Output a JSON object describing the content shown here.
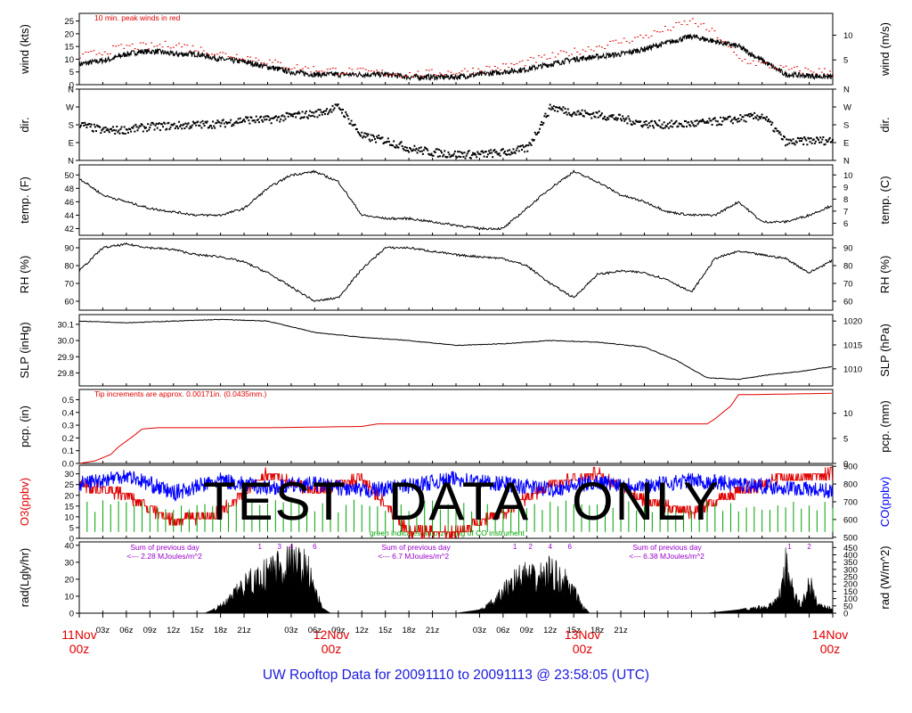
{
  "title": "UW Rooftop Data for 20091110  to  20091113 @ 23:58:05  (UTC)",
  "watermark": [
    "TEST",
    "DATA",
    "ONLY"
  ],
  "time_axis": {
    "hour_ticks": [
      "03z",
      "06z",
      "09z",
      "12z",
      "15z",
      "18z",
      "21z",
      "03z",
      "06z",
      "09z",
      "12z",
      "15z",
      "18z",
      "21z",
      "03z",
      "06z",
      "09z",
      "12z",
      "15z",
      "18z",
      "21z"
    ],
    "day_labels": [
      {
        "day": "11Nov",
        "hour": "00z"
      },
      {
        "day": "12Nov",
        "hour": "00z"
      },
      {
        "day": "13Nov",
        "hour": "00z"
      },
      {
        "day": "14Nov",
        "hour": "00z"
      }
    ],
    "day_label_color": "#e00000"
  },
  "colors": {
    "frame": "#000000",
    "red": "#e00000",
    "blue": "#0000ff",
    "green": "#00a000",
    "purple": "#9900cc"
  },
  "chart_data": [
    {
      "type": "line",
      "ylabel_left": "wind (kts)",
      "ylabel_right": "wind (m/s)",
      "ylim": [
        0,
        28
      ],
      "yticks": [
        "0",
        "5",
        "10",
        "15",
        "20",
        "25"
      ],
      "right_ticks": [
        "5",
        "10"
      ],
      "right_values": [
        5,
        10
      ],
      "right_factor": 1.944,
      "annotation": "10 min. peak winds in red",
      "series": [
        {
          "name": "",
          "color": "#000000",
          "x": [
            0,
            2,
            4,
            6,
            8,
            10,
            12,
            15,
            18,
            21,
            24,
            27,
            30,
            33,
            36,
            39,
            42,
            45,
            48,
            51,
            54,
            57,
            60,
            63,
            66,
            69,
            72,
            78,
            84,
            90,
            96
          ],
          "y": [
            8,
            9,
            10,
            12,
            13,
            13,
            12,
            12,
            10,
            9,
            7,
            5,
            4,
            4,
            4,
            4,
            3,
            3,
            3,
            4,
            5,
            6,
            8,
            10,
            11,
            12,
            14,
            19,
            15,
            4,
            3
          ]
        },
        {
          "name": "10 min. peak winds",
          "color": "#e00000",
          "x": [
            0,
            3,
            6,
            9,
            12,
            15,
            18,
            21,
            24,
            27,
            30,
            36,
            42,
            48,
            54,
            60,
            66,
            72,
            78,
            81,
            84,
            90,
            96
          ],
          "y": [
            11,
            13,
            15,
            15,
            16,
            14,
            12,
            11,
            9,
            7,
            6,
            5,
            4,
            5,
            7,
            11,
            15,
            19,
            25,
            20,
            10,
            6,
            5
          ]
        }
      ]
    },
    {
      "type": "scatter",
      "ylabel_left": "dir.",
      "ylabel_right": "dir.",
      "ylim": [
        0,
        360
      ],
      "yticks": [
        "N",
        "E",
        "S",
        "W",
        "N"
      ],
      "ytick_values": [
        0,
        90,
        180,
        270,
        360
      ],
      "right_ticks": [
        "N",
        "E",
        "S",
        "W",
        "N"
      ],
      "right_values": [
        0,
        90,
        180,
        270,
        360
      ],
      "right_factor": 1,
      "series": [
        {
          "name": "",
          "color": "#000000",
          "x": [
            0,
            3,
            6,
            9,
            12,
            15,
            18,
            21,
            24,
            27,
            30,
            33,
            36,
            39,
            42,
            45,
            48,
            51,
            54,
            57,
            60,
            63,
            66,
            69,
            72,
            75,
            78,
            81,
            84,
            87,
            90,
            93,
            96
          ],
          "y": [
            180,
            150,
            155,
            170,
            175,
            180,
            185,
            205,
            205,
            225,
            235,
            270,
            120,
            100,
            60,
            40,
            30,
            30,
            40,
            60,
            270,
            240,
            230,
            210,
            185,
            180,
            185,
            195,
            210,
            225,
            90,
            100,
            100
          ]
        }
      ]
    },
    {
      "type": "line",
      "ylabel_left": "temp. (F)",
      "ylabel_right": "temp. (C)",
      "ylim": [
        41,
        51.5
      ],
      "yticks": [
        "42",
        "44",
        "46",
        "48",
        "50"
      ],
      "ytick_values": [
        42,
        44,
        46,
        48,
        50
      ],
      "right_ticks": [
        "6",
        "7",
        "8",
        "9",
        "10"
      ],
      "right_values": [
        6,
        7,
        8,
        9,
        10
      ],
      "right_factor": "C",
      "series": [
        {
          "name": "",
          "color": "#000000",
          "x": [
            0,
            3,
            6,
            9,
            12,
            15,
            18,
            21,
            24,
            27,
            30,
            33,
            36,
            39,
            42,
            45,
            48,
            51,
            54,
            57,
            60,
            63,
            66,
            69,
            72,
            75,
            78,
            81,
            84,
            87,
            90,
            93,
            96
          ],
          "y": [
            49.5,
            47,
            46,
            45,
            44.5,
            44,
            44,
            45,
            48,
            50,
            50.5,
            49,
            44,
            43.5,
            43.5,
            43,
            42.5,
            42,
            42,
            45,
            48,
            50.5,
            49,
            47,
            46,
            44.5,
            44,
            44,
            46,
            43,
            43,
            44,
            45.5
          ]
        }
      ]
    },
    {
      "type": "line",
      "ylabel_left": "RH (%)",
      "ylabel_right": "RH (%)",
      "ylim": [
        55,
        95
      ],
      "yticks": [
        "60",
        "70",
        "80",
        "90"
      ],
      "ytick_values": [
        60,
        70,
        80,
        90
      ],
      "right_ticks": [
        "60",
        "70",
        "80",
        "90"
      ],
      "right_values": [
        60,
        70,
        80,
        90
      ],
      "right_factor": 1,
      "series": [
        {
          "name": "",
          "color": "#000000",
          "x": [
            0,
            3,
            6,
            9,
            12,
            15,
            18,
            21,
            24,
            27,
            30,
            33,
            36,
            39,
            42,
            45,
            48,
            51,
            54,
            57,
            60,
            63,
            66,
            69,
            72,
            75,
            78,
            81,
            84,
            87,
            90,
            93,
            96
          ],
          "y": [
            77,
            90,
            92,
            90,
            89,
            86,
            85,
            82,
            76,
            68,
            60,
            62,
            78,
            90,
            90,
            88,
            86,
            85,
            84,
            80,
            70,
            62,
            75,
            77,
            76,
            72,
            65,
            84,
            88,
            86,
            84,
            76,
            83
          ]
        }
      ]
    },
    {
      "type": "line",
      "ylabel_left": "SLP (inHg)",
      "ylabel_right": "SLP (hPa)",
      "ylim": [
        29.72,
        30.16
      ],
      "yticks": [
        "29.8",
        "29.9",
        "30.0",
        "30.1"
      ],
      "ytick_values": [
        29.8,
        29.9,
        30.0,
        30.1
      ],
      "right_ticks": [
        "1010",
        "1015",
        "1020"
      ],
      "right_values": [
        1010,
        1015,
        1020
      ],
      "right_factor": "hPa",
      "series": [
        {
          "name": "",
          "color": "#000000",
          "x": [
            0,
            6,
            12,
            18,
            24,
            30,
            36,
            42,
            48,
            54,
            60,
            66,
            72,
            76,
            80,
            84,
            88,
            92,
            96
          ],
          "y": [
            30.12,
            30.11,
            30.12,
            30.13,
            30.12,
            30.05,
            30.02,
            30.0,
            29.97,
            29.98,
            30.0,
            29.99,
            29.96,
            29.88,
            29.77,
            29.76,
            29.79,
            29.81,
            29.84
          ]
        }
      ]
    },
    {
      "type": "line",
      "ylabel_left": "pcp. (in)",
      "ylabel_right": "pcp. (mm)",
      "ylim": [
        0,
        0.58
      ],
      "yticks": [
        "0.0",
        "0.1",
        "0.2",
        "0.3",
        "0.4",
        "0.5"
      ],
      "ytick_values": [
        0,
        0.1,
        0.2,
        0.3,
        0.4,
        0.5
      ],
      "right_ticks": [
        "0",
        "5",
        "10"
      ],
      "right_values": [
        0,
        5,
        10
      ],
      "right_factor": 25.4,
      "annotation": "Tip increments are approx. 0.00171in. (0.0435mm.)",
      "series": [
        {
          "name": "",
          "color": "#e00000",
          "x": [
            0,
            2,
            4,
            5,
            7,
            8,
            10,
            16,
            24,
            36,
            38,
            48,
            60,
            72,
            80,
            81,
            83,
            84,
            86,
            96
          ],
          "y": [
            0,
            0.02,
            0.07,
            0.13,
            0.22,
            0.27,
            0.28,
            0.28,
            0.28,
            0.29,
            0.31,
            0.31,
            0.31,
            0.31,
            0.31,
            0.35,
            0.45,
            0.54,
            0.54,
            0.55
          ]
        }
      ]
    },
    {
      "type": "line",
      "ylabel_left": "O3(ppbv)",
      "ylabel_right": "CO(ppbv)",
      "ylim": [
        0,
        34
      ],
      "yticks": [
        "0",
        "5",
        "10",
        "15",
        "20",
        "25",
        "30"
      ],
      "ytick_values": [
        0,
        5,
        10,
        15,
        20,
        25,
        30
      ],
      "right_ticks": [
        "500",
        "600",
        "700",
        "800",
        "900"
      ],
      "right_values": [
        500,
        600,
        700,
        800,
        900
      ],
      "right_factor": "CO",
      "annotation": "green indicates auto-zeroing of CO instrument",
      "series": [
        {
          "name": "O3",
          "color": "#e00000",
          "x": [
            0,
            6,
            12,
            18,
            24,
            30,
            36,
            42,
            48,
            54,
            60,
            66,
            72,
            78,
            84,
            90,
            96
          ],
          "y": [
            25,
            20,
            8,
            12,
            30,
            22,
            28,
            3,
            3,
            12,
            25,
            30,
            18,
            12,
            22,
            28,
            30
          ]
        },
        {
          "name": "CO",
          "color": "#0000ff",
          "x": [
            0,
            6,
            12,
            18,
            24,
            30,
            36,
            42,
            48,
            54,
            60,
            66,
            72,
            78,
            84,
            90,
            96
          ],
          "y": [
            800,
            850,
            750,
            820,
            780,
            800,
            760,
            790,
            830,
            800,
            770,
            810,
            790,
            820,
            800,
            780,
            760
          ]
        }
      ]
    },
    {
      "type": "area",
      "ylabel_left": "rad(Lgly/hr)",
      "ylabel_right": "rad (W/m^2)",
      "ylim": [
        0,
        42
      ],
      "yticks": [
        "0",
        "10",
        "20",
        "30",
        "40"
      ],
      "ytick_values": [
        0,
        10,
        20,
        30,
        40
      ],
      "right_ticks": [
        "0",
        "50",
        "100",
        "150",
        "200",
        "250",
        "300",
        "350",
        "400",
        "450",
        "500"
      ],
      "right_values": [
        0,
        50,
        100,
        150,
        200,
        250,
        300,
        350,
        400,
        450,
        500
      ],
      "right_factor": 11.63,
      "annotations": [
        {
          "line1": "Sum of previous day",
          "line2": "<--- 2.28 MJoules/m^2",
          "x": 9
        },
        {
          "line1": "Sum of previous day",
          "line2": "<--- 6.7 MJoules/m^2",
          "x": 41
        },
        {
          "line1": "Sum of previous day",
          "line2": "<--- 6.38 MJoules/m^2",
          "x": 73
        }
      ],
      "event_marks": [
        {
          "label": "1",
          "x": 23
        },
        {
          "label": "3",
          "x": 25.5
        },
        {
          "label": "4",
          "x": 27
        },
        {
          "label": "6",
          "x": 30
        },
        {
          "label": "1",
          "x": 55.5
        },
        {
          "label": "2",
          "x": 57.5
        },
        {
          "label": "4",
          "x": 60
        },
        {
          "label": "6",
          "x": 62.5
        },
        {
          "label": "1",
          "x": 90.5
        },
        {
          "label": "2",
          "x": 93
        }
      ],
      "series": [
        {
          "name": "",
          "color": "#000000",
          "x": [
            0,
            16,
            17,
            19,
            21,
            23,
            25,
            27,
            29,
            30,
            31,
            32,
            48,
            51,
            53,
            55,
            57,
            58,
            60,
            61,
            62,
            63,
            64,
            65,
            80,
            84,
            86,
            88,
            89,
            90,
            91,
            92,
            93,
            94,
            95,
            96
          ],
          "y": [
            0,
            0,
            2,
            10,
            24,
            30,
            40,
            42,
            38,
            20,
            3,
            0,
            0,
            2,
            10,
            26,
            32,
            28,
            35,
            30,
            26,
            18,
            6,
            0,
            0,
            2,
            4,
            6,
            10,
            40,
            16,
            6,
            26,
            8,
            5,
            4
          ]
        }
      ]
    }
  ]
}
